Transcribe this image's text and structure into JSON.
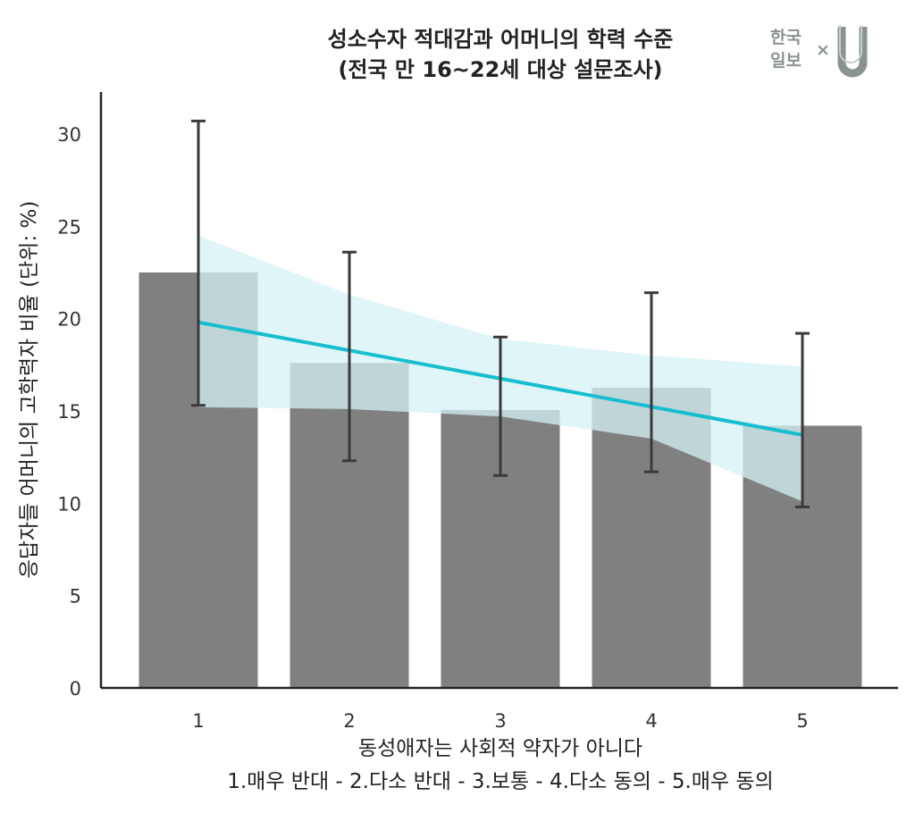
{
  "chart_data": {
    "type": "bar",
    "title": "성소수자 적대감과 어머니의 학력 수준",
    "subtitle": "(전국 만 16~22세 대상 설문조사)",
    "xlabel": "동성애자는 사회적 약자가 아니다",
    "xlabel_sub": "1.매우 반대 - 2.다소 반대 - 3.보통 - 4.다소 동의 - 5.매우 동의",
    "ylabel": "응답자들 어머니의 고학력자 비율 (단위: %)",
    "categories": [
      "1",
      "2",
      "3",
      "4",
      "5"
    ],
    "values": [
      22.5,
      17.6,
      15.05,
      16.25,
      14.2
    ],
    "error_low": [
      15.3,
      12.3,
      11.5,
      11.7,
      9.8
    ],
    "error_high": [
      30.7,
      23.6,
      19.0,
      21.4,
      19.2
    ],
    "regression": {
      "start": 19.8,
      "end": 13.7
    },
    "ci_upper": [
      24.5,
      21.3,
      18.9,
      18.0,
      17.4
    ],
    "ci_lower": [
      15.2,
      15.1,
      14.7,
      13.5,
      10.1
    ],
    "yticks": [
      "0",
      "5",
      "10",
      "15",
      "20",
      "25",
      "30"
    ],
    "ylim": [
      0,
      32
    ],
    "grid": false,
    "colors": {
      "bar": "#808080",
      "line": "#17becf",
      "band": "#d4f1f6",
      "error": "#3a3a3a"
    }
  },
  "logo": {
    "line1": "한국",
    "line2": "일보",
    "times": "×",
    "mark": "U"
  }
}
